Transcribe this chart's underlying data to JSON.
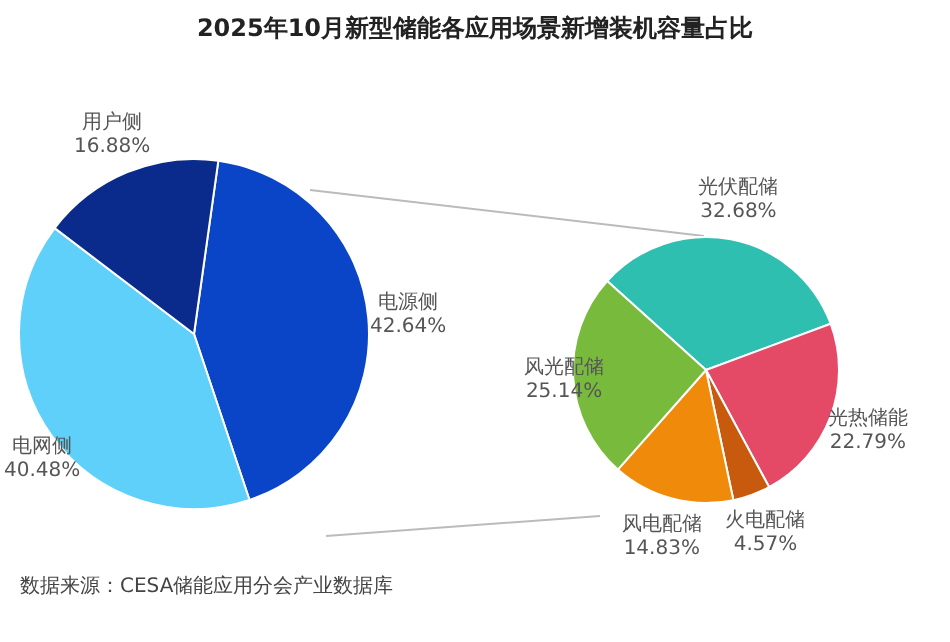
{
  "chart_data": [
    {
      "type": "pie",
      "title": "2025年10月新型储能各应用场景新增装机容量占比",
      "categories": [
        "电源侧",
        "电网侧",
        "用户侧"
      ],
      "values": [
        42.64,
        40.48,
        16.88
      ],
      "value_labels": [
        "42.64%",
        "40.48%",
        "16.88%"
      ],
      "colors": [
        "#0a45c8",
        "#5ed0fa",
        "#0a2a8c"
      ],
      "annotations": [
        "数据来源：CESA储能应用分会产业数据库"
      ]
    },
    {
      "type": "pie",
      "categories": [
        "光伏配储",
        "光热储能",
        "火电配储",
        "风电配储",
        "风光配储"
      ],
      "values": [
        32.68,
        22.79,
        4.57,
        14.83,
        25.14
      ],
      "value_labels": [
        "32.68%",
        "22.79%",
        "4.57%",
        "14.83%",
        "25.14%"
      ],
      "colors": [
        "#2ebfb0",
        "#e44a66",
        "#c85a0e",
        "#f08a0a",
        "#78bb3c"
      ]
    }
  ]
}
